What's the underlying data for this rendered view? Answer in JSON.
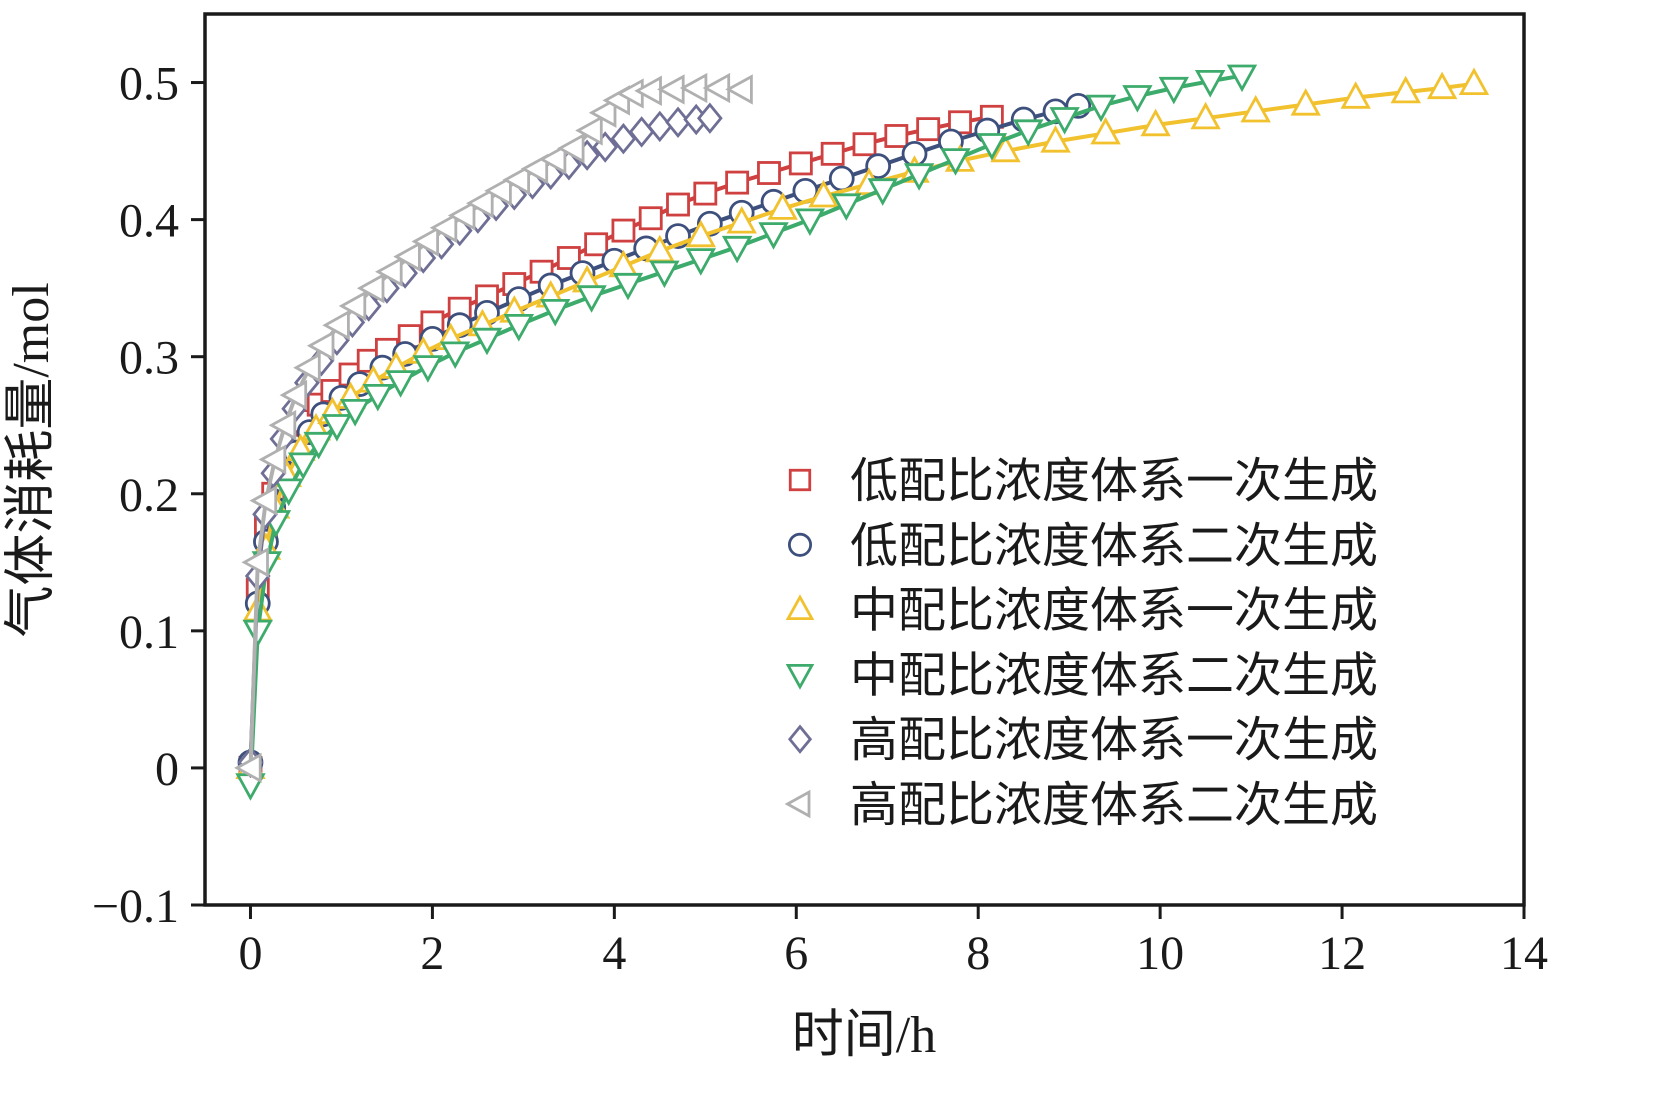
{
  "chart_data": {
    "type": "line",
    "title": "",
    "xlabel": "时间/h",
    "ylabel": "气体消耗量/mol",
    "xlim": [
      -0.5,
      14
    ],
    "ylim": [
      -0.1,
      0.55
    ],
    "grid": false,
    "legend_position": "inside-right",
    "frame_color": "#1a1a1a",
    "xticks": {
      "values": [
        0,
        2,
        4,
        6,
        8,
        10,
        12,
        14
      ],
      "labels": [
        "0",
        "2",
        "4",
        "6",
        "8",
        "10",
        "12",
        "14"
      ]
    },
    "yticks": {
      "values": [
        -0.1,
        0,
        0.1,
        0.2,
        0.3,
        0.4,
        0.5
      ],
      "labels": [
        "−0.1",
        "0",
        "0.1",
        "0.2",
        "0.3",
        "0.4",
        "0.5"
      ]
    },
    "series": [
      {
        "key": "low-ratio-first-gen",
        "name": "低配比浓度体系一次生成",
        "marker": "square",
        "color": "#cf4040",
        "points": [
          [
            0,
            0
          ],
          [
            0.08,
            0.13
          ],
          [
            0.17,
            0.175
          ],
          [
            0.25,
            0.2
          ],
          [
            0.33,
            0.215
          ],
          [
            0.45,
            0.235
          ],
          [
            0.6,
            0.253
          ],
          [
            0.75,
            0.265
          ],
          [
            0.9,
            0.275
          ],
          [
            1.1,
            0.287
          ],
          [
            1.3,
            0.297
          ],
          [
            1.5,
            0.305
          ],
          [
            1.75,
            0.315
          ],
          [
            2.0,
            0.325
          ],
          [
            2.3,
            0.335
          ],
          [
            2.6,
            0.344
          ],
          [
            2.9,
            0.353
          ],
          [
            3.2,
            0.362
          ],
          [
            3.5,
            0.372
          ],
          [
            3.8,
            0.382
          ],
          [
            4.1,
            0.392
          ],
          [
            4.4,
            0.401
          ],
          [
            4.7,
            0.411
          ],
          [
            5.0,
            0.419
          ],
          [
            5.35,
            0.427
          ],
          [
            5.7,
            0.434
          ],
          [
            6.05,
            0.441
          ],
          [
            6.4,
            0.448
          ],
          [
            6.75,
            0.455
          ],
          [
            7.1,
            0.461
          ],
          [
            7.45,
            0.466
          ],
          [
            7.8,
            0.471
          ],
          [
            8.15,
            0.475
          ]
        ]
      },
      {
        "key": "low-ratio-second-gen",
        "name": "低配比浓度体系二次生成",
        "marker": "circle",
        "color": "#3d4f7c",
        "points": [
          [
            0,
            0.004
          ],
          [
            0.08,
            0.12
          ],
          [
            0.17,
            0.165
          ],
          [
            0.25,
            0.19
          ],
          [
            0.35,
            0.21
          ],
          [
            0.5,
            0.23
          ],
          [
            0.65,
            0.245
          ],
          [
            0.8,
            0.258
          ],
          [
            1.0,
            0.27
          ],
          [
            1.2,
            0.28
          ],
          [
            1.45,
            0.292
          ],
          [
            1.7,
            0.302
          ],
          [
            2.0,
            0.313
          ],
          [
            2.3,
            0.323
          ],
          [
            2.6,
            0.332
          ],
          [
            2.95,
            0.342
          ],
          [
            3.3,
            0.352
          ],
          [
            3.65,
            0.361
          ],
          [
            4.0,
            0.37
          ],
          [
            4.35,
            0.379
          ],
          [
            4.7,
            0.388
          ],
          [
            5.05,
            0.397
          ],
          [
            5.4,
            0.405
          ],
          [
            5.75,
            0.413
          ],
          [
            6.1,
            0.421
          ],
          [
            6.5,
            0.43
          ],
          [
            6.9,
            0.439
          ],
          [
            7.3,
            0.448
          ],
          [
            7.7,
            0.457
          ],
          [
            8.1,
            0.465
          ],
          [
            8.5,
            0.473
          ],
          [
            8.85,
            0.479
          ],
          [
            9.1,
            0.483
          ]
        ]
      },
      {
        "key": "mid-ratio-first-gen",
        "name": "中配比浓度体系一次生成",
        "marker": "triangle-up",
        "color": "#f2c12e",
        "points": [
          [
            0,
            0
          ],
          [
            0.08,
            0.115
          ],
          [
            0.17,
            0.16
          ],
          [
            0.27,
            0.19
          ],
          [
            0.4,
            0.213
          ],
          [
            0.55,
            0.232
          ],
          [
            0.72,
            0.247
          ],
          [
            0.9,
            0.259
          ],
          [
            1.1,
            0.27
          ],
          [
            1.35,
            0.282
          ],
          [
            1.6,
            0.292
          ],
          [
            1.9,
            0.303
          ],
          [
            2.2,
            0.313
          ],
          [
            2.55,
            0.323
          ],
          [
            2.9,
            0.333
          ],
          [
            3.3,
            0.344
          ],
          [
            3.7,
            0.355
          ],
          [
            4.1,
            0.366
          ],
          [
            4.5,
            0.377
          ],
          [
            4.95,
            0.388
          ],
          [
            5.4,
            0.398
          ],
          [
            5.85,
            0.408
          ],
          [
            6.3,
            0.417
          ],
          [
            6.8,
            0.426
          ],
          [
            7.3,
            0.435
          ],
          [
            7.8,
            0.443
          ],
          [
            8.3,
            0.45
          ],
          [
            8.85,
            0.457
          ],
          [
            9.4,
            0.463
          ],
          [
            9.95,
            0.469
          ],
          [
            10.5,
            0.474
          ],
          [
            11.05,
            0.479
          ],
          [
            11.6,
            0.484
          ],
          [
            12.15,
            0.489
          ],
          [
            12.7,
            0.493
          ],
          [
            13.1,
            0.496
          ],
          [
            13.45,
            0.499
          ]
        ]
      },
      {
        "key": "mid-ratio-second-gen",
        "name": "中配比浓度体系二次生成",
        "marker": "triangle-down",
        "color": "#3cab6b",
        "points": [
          [
            0,
            -0.012
          ],
          [
            0.08,
            0.1
          ],
          [
            0.18,
            0.15
          ],
          [
            0.28,
            0.18
          ],
          [
            0.42,
            0.203
          ],
          [
            0.58,
            0.222
          ],
          [
            0.75,
            0.237
          ],
          [
            0.95,
            0.25
          ],
          [
            1.15,
            0.261
          ],
          [
            1.4,
            0.272
          ],
          [
            1.65,
            0.282
          ],
          [
            1.95,
            0.293
          ],
          [
            2.25,
            0.303
          ],
          [
            2.6,
            0.313
          ],
          [
            2.95,
            0.323
          ],
          [
            3.35,
            0.334
          ],
          [
            3.75,
            0.344
          ],
          [
            4.15,
            0.353
          ],
          [
            4.55,
            0.362
          ],
          [
            4.95,
            0.371
          ],
          [
            5.35,
            0.38
          ],
          [
            5.75,
            0.39
          ],
          [
            6.15,
            0.4
          ],
          [
            6.55,
            0.411
          ],
          [
            6.95,
            0.422
          ],
          [
            7.35,
            0.433
          ],
          [
            7.75,
            0.444
          ],
          [
            8.15,
            0.455
          ],
          [
            8.55,
            0.465
          ],
          [
            8.95,
            0.474
          ],
          [
            9.35,
            0.483
          ],
          [
            9.75,
            0.49
          ],
          [
            10.15,
            0.496
          ],
          [
            10.55,
            0.501
          ],
          [
            10.9,
            0.505
          ]
        ]
      },
      {
        "key": "high-ratio-first-gen",
        "name": "高配比浓度体系一次生成",
        "marker": "diamond",
        "color": "#6f6f96",
        "points": [
          [
            0,
            0.004
          ],
          [
            0.08,
            0.14
          ],
          [
            0.16,
            0.185
          ],
          [
            0.25,
            0.215
          ],
          [
            0.35,
            0.24
          ],
          [
            0.48,
            0.262
          ],
          [
            0.62,
            0.281
          ],
          [
            0.78,
            0.297
          ],
          [
            0.95,
            0.312
          ],
          [
            1.12,
            0.325
          ],
          [
            1.3,
            0.337
          ],
          [
            1.5,
            0.35
          ],
          [
            1.7,
            0.361
          ],
          [
            1.9,
            0.372
          ],
          [
            2.1,
            0.382
          ],
          [
            2.3,
            0.392
          ],
          [
            2.5,
            0.401
          ],
          [
            2.7,
            0.41
          ],
          [
            2.9,
            0.418
          ],
          [
            3.1,
            0.426
          ],
          [
            3.3,
            0.433
          ],
          [
            3.5,
            0.44
          ],
          [
            3.7,
            0.447
          ],
          [
            3.9,
            0.453
          ],
          [
            4.1,
            0.459
          ],
          [
            4.3,
            0.464
          ],
          [
            4.5,
            0.468
          ],
          [
            4.7,
            0.471
          ],
          [
            4.9,
            0.473
          ],
          [
            5.05,
            0.474
          ]
        ]
      },
      {
        "key": "high-ratio-second-gen",
        "name": "高配比浓度体系二次生成",
        "marker": "triangle-left",
        "color": "#b0b0b0",
        "points": [
          [
            0,
            0
          ],
          [
            0.08,
            0.15
          ],
          [
            0.17,
            0.195
          ],
          [
            0.27,
            0.225
          ],
          [
            0.38,
            0.25
          ],
          [
            0.5,
            0.272
          ],
          [
            0.65,
            0.292
          ],
          [
            0.8,
            0.308
          ],
          [
            0.97,
            0.323
          ],
          [
            1.15,
            0.337
          ],
          [
            1.35,
            0.35
          ],
          [
            1.55,
            0.362
          ],
          [
            1.75,
            0.373
          ],
          [
            1.95,
            0.384
          ],
          [
            2.15,
            0.394
          ],
          [
            2.35,
            0.403
          ],
          [
            2.55,
            0.412
          ],
          [
            2.75,
            0.421
          ],
          [
            2.95,
            0.429
          ],
          [
            3.15,
            0.437
          ],
          [
            3.35,
            0.444
          ],
          [
            3.55,
            0.452
          ],
          [
            3.75,
            0.465
          ],
          [
            3.9,
            0.478
          ],
          [
            4.05,
            0.487
          ],
          [
            4.2,
            0.492
          ],
          [
            4.4,
            0.494
          ],
          [
            4.65,
            0.495
          ],
          [
            4.9,
            0.496
          ],
          [
            5.15,
            0.496
          ],
          [
            5.4,
            0.495
          ]
        ]
      }
    ]
  }
}
